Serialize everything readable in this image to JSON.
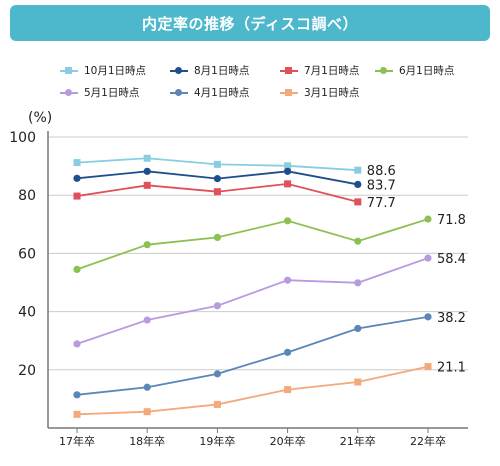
{
  "title": "内定率の推移（ディスコ調べ）",
  "colors": {
    "title_bg": "#4db8cc",
    "axis": "#777777",
    "grid": "#cccccc"
  },
  "chart_data": {
    "type": "line",
    "title": "内定率の推移（ディスコ調べ）",
    "ylabel": "(%)",
    "xlabel": "",
    "ylim": [
      0,
      100
    ],
    "yticks": [
      20,
      40,
      60,
      80,
      100
    ],
    "grid": true,
    "legend_position": "top",
    "categories": [
      "17年卒",
      "18年卒",
      "19年卒",
      "20年卒",
      "21年卒",
      "22年卒"
    ],
    "series": [
      {
        "name": "10月1日時点",
        "color": "#88cee0",
        "marker": "square",
        "values": [
          91.2,
          92.7,
          90.6,
          90.1,
          88.6,
          null
        ],
        "end_label": "88.6"
      },
      {
        "name": "8月1日時点",
        "color": "#1f4e8c",
        "marker": "circle",
        "values": [
          85.8,
          88.2,
          85.7,
          88.2,
          83.7,
          null
        ],
        "end_label": "83.7"
      },
      {
        "name": "7月1日時点",
        "color": "#e0505a",
        "marker": "square",
        "values": [
          79.7,
          83.4,
          81.2,
          83.9,
          77.7,
          null
        ],
        "end_label": "77.7"
      },
      {
        "name": "6月1日時点",
        "color": "#8cc152",
        "marker": "circle",
        "values": [
          54.5,
          63.0,
          65.5,
          71.2,
          64.2,
          71.8
        ],
        "end_label": "71.8"
      },
      {
        "name": "5月1日時点",
        "color": "#b89ae0",
        "marker": "circle",
        "values": [
          28.9,
          37.1,
          42.0,
          50.8,
          49.9,
          58.4
        ],
        "end_label": "58.4"
      },
      {
        "name": "4月1日時点",
        "color": "#5b86b8",
        "marker": "circle",
        "values": [
          11.4,
          14.0,
          18.6,
          26.0,
          34.2,
          38.2
        ],
        "end_label": "38.2"
      },
      {
        "name": "3月1日時点",
        "color": "#f4a97a",
        "marker": "square",
        "values": [
          4.7,
          5.6,
          8.1,
          13.2,
          15.8,
          21.1
        ],
        "end_label": "21.1"
      }
    ]
  }
}
